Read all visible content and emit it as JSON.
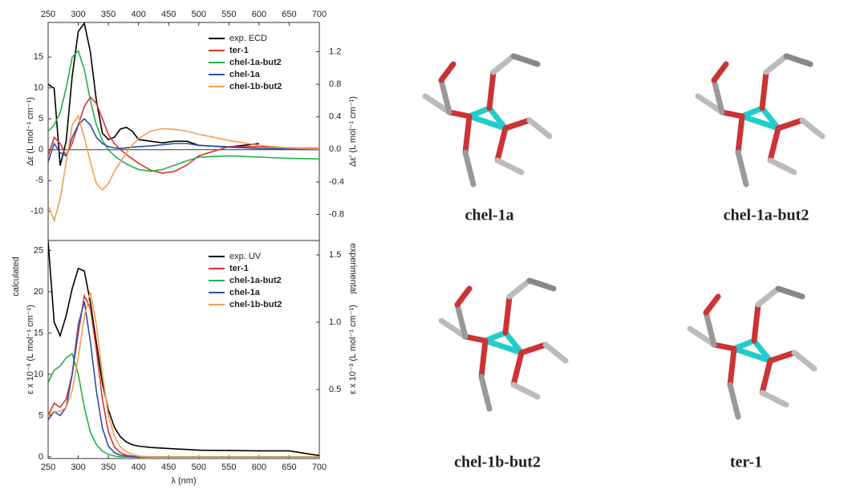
{
  "chart_data": [
    {
      "type": "line",
      "xlim": [
        250,
        700
      ],
      "xticks": [
        250,
        300,
        350,
        400,
        450,
        500,
        550,
        600,
        650,
        700
      ],
      "ylim": [
        -14.7,
        20.6
      ],
      "yticks": [
        -10,
        -5,
        0,
        5,
        10,
        15
      ],
      "y2lim": [
        -1.12,
        1.56
      ],
      "y2ticks": [
        -0.8,
        -0.4,
        {
          "value": 0,
          "label": "0.0"
        },
        0.4,
        0.8,
        1.2
      ],
      "y_label": "Δε (L mol⁻¹ cm⁻¹)",
      "y2_label": "Δε' (L mol⁻¹ cm⁻¹)",
      "legend": "upper right",
      "zero_line": true,
      "x": [
        250,
        260,
        270,
        280,
        290,
        300,
        310,
        320,
        330,
        340,
        350,
        360,
        370,
        380,
        390,
        400,
        420,
        440,
        460,
        480,
        500,
        550,
        600,
        650,
        700
      ],
      "series": [
        {
          "name": "exp. ECD",
          "color": "#000000",
          "axis": "y2",
          "values": [
            0.8,
            0.75,
            -0.2,
            0.1,
            0.9,
            1.45,
            1.55,
            1.2,
            0.6,
            0.2,
            0.12,
            0.15,
            0.25,
            0.27,
            0.22,
            0.12,
            0.1,
            0.08,
            0.1,
            0.1,
            0.05,
            0.03,
            0.07,
            null,
            null
          ]
        },
        {
          "name": "ter-1",
          "color": "#e03030",
          "values": [
            -1,
            2,
            1,
            -1,
            1,
            4,
            7,
            8.5,
            7.5,
            5,
            2.5,
            1,
            0,
            -0.8,
            -1.5,
            -2.2,
            -3.3,
            -3.8,
            -3.5,
            -2.5,
            -1,
            0.5,
            0.5,
            0.3,
            0.2
          ]
        },
        {
          "name": "chel-1a-but2",
          "color": "#22b04a",
          "values": [
            3,
            4,
            6,
            10,
            15,
            16,
            13,
            8,
            4,
            1.5,
            0,
            -1,
            -1.7,
            -2.3,
            -2.8,
            -3.2,
            -3.5,
            -3.2,
            -2.5,
            -1.8,
            -1.2,
            -1,
            -1.2,
            -1.4,
            -1.5
          ]
        },
        {
          "name": "chel-1a",
          "color": "#2a4fa8",
          "values": [
            -2,
            1,
            -0.5,
            -1,
            2,
            4,
            5,
            4,
            2,
            1,
            0.5,
            0.3,
            0.2,
            0.3,
            0.4,
            0.5,
            0.6,
            0.8,
            1,
            1,
            0.7,
            0.4,
            0.2,
            0.1,
            0
          ]
        },
        {
          "name": "chel-1b-but2",
          "color": "#f0a050",
          "values": [
            -9,
            -11.5,
            -8,
            -2,
            4,
            5.5,
            2,
            -2,
            -5.5,
            -6.5,
            -5.5,
            -3.5,
            -2,
            -0.5,
            0.8,
            1.8,
            3,
            3.4,
            3.3,
            3,
            2.5,
            1.5,
            0.7,
            0.3,
            0.1
          ]
        }
      ]
    },
    {
      "type": "line",
      "xlim": [
        250,
        700
      ],
      "xticks": [
        250,
        300,
        350,
        400,
        450,
        500,
        550,
        600,
        650,
        700
      ],
      "ylim": [
        -0.2,
        26.2
      ],
      "yticks": [
        0,
        5,
        10,
        15,
        20,
        25
      ],
      "y2lim": [
        -0.012,
        1.607
      ],
      "y2ticks": [
        0.5,
        {
          "value": 1,
          "label": "1.0"
        },
        1.5
      ],
      "x_label": "λ (nm)",
      "y_label": "ε x 10⁻³ (L mol⁻¹ cm⁻¹)",
      "y2_label": "ε x 10⁻³ (L mol⁻¹ cm⁻¹)",
      "y_note": "calculated",
      "y2_note": "experimental",
      "legend": "upper right",
      "x": [
        250,
        260,
        270,
        280,
        290,
        300,
        310,
        320,
        330,
        340,
        350,
        360,
        370,
        380,
        390,
        400,
        420,
        440,
        460,
        480,
        500,
        550,
        600,
        650,
        700
      ],
      "series": [
        {
          "name": "exp. UV",
          "color": "#000000",
          "axis": "y2",
          "values": [
            1.6,
            1.0,
            0.9,
            1.05,
            1.25,
            1.4,
            1.38,
            1.15,
            0.85,
            0.55,
            0.35,
            0.22,
            0.15,
            0.11,
            0.09,
            0.08,
            0.07,
            0.065,
            0.06,
            0.055,
            0.05,
            0.048,
            0.045,
            0.045,
            0.01
          ]
        },
        {
          "name": "ter-1",
          "color": "#e03030",
          "values": [
            5,
            6.5,
            6,
            7,
            10,
            15,
            19.5,
            18,
            13,
            7,
            3,
            1.2,
            0.5,
            0.2,
            0.1,
            0,
            0,
            0,
            0,
            0,
            0,
            0,
            0,
            0,
            0
          ]
        },
        {
          "name": "chel-1a-but2",
          "color": "#22b04a",
          "values": [
            9,
            10.5,
            11,
            12,
            12.5,
            10,
            6,
            3,
            1.5,
            0.7,
            0.3,
            0.1,
            0,
            0,
            0,
            0,
            0,
            0,
            0,
            0,
            0,
            0,
            0,
            0,
            0
          ]
        },
        {
          "name": "chel-1a",
          "color": "#2a4fa8",
          "values": [
            4.5,
            5.5,
            5,
            6,
            10,
            16,
            18.8,
            14,
            8,
            3.5,
            1.3,
            0.5,
            0.2,
            0.1,
            0,
            0,
            0,
            0,
            0,
            0,
            0,
            0,
            0,
            0,
            0
          ]
        },
        {
          "name": "chel-1b-but2",
          "color": "#f0a050",
          "values": [
            5,
            5.5,
            5.5,
            6,
            8,
            12,
            17,
            20,
            16,
            10,
            5,
            2.5,
            1.2,
            0.6,
            0.3,
            0.1,
            0,
            0,
            0,
            0,
            0,
            0,
            0,
            0,
            0
          ]
        }
      ]
    }
  ],
  "molecules": [
    {
      "label": "chel-1a"
    },
    {
      "label": "chel-1a-but2"
    },
    {
      "label": "chel-1b-but2"
    },
    {
      "label": "ter-1"
    }
  ]
}
